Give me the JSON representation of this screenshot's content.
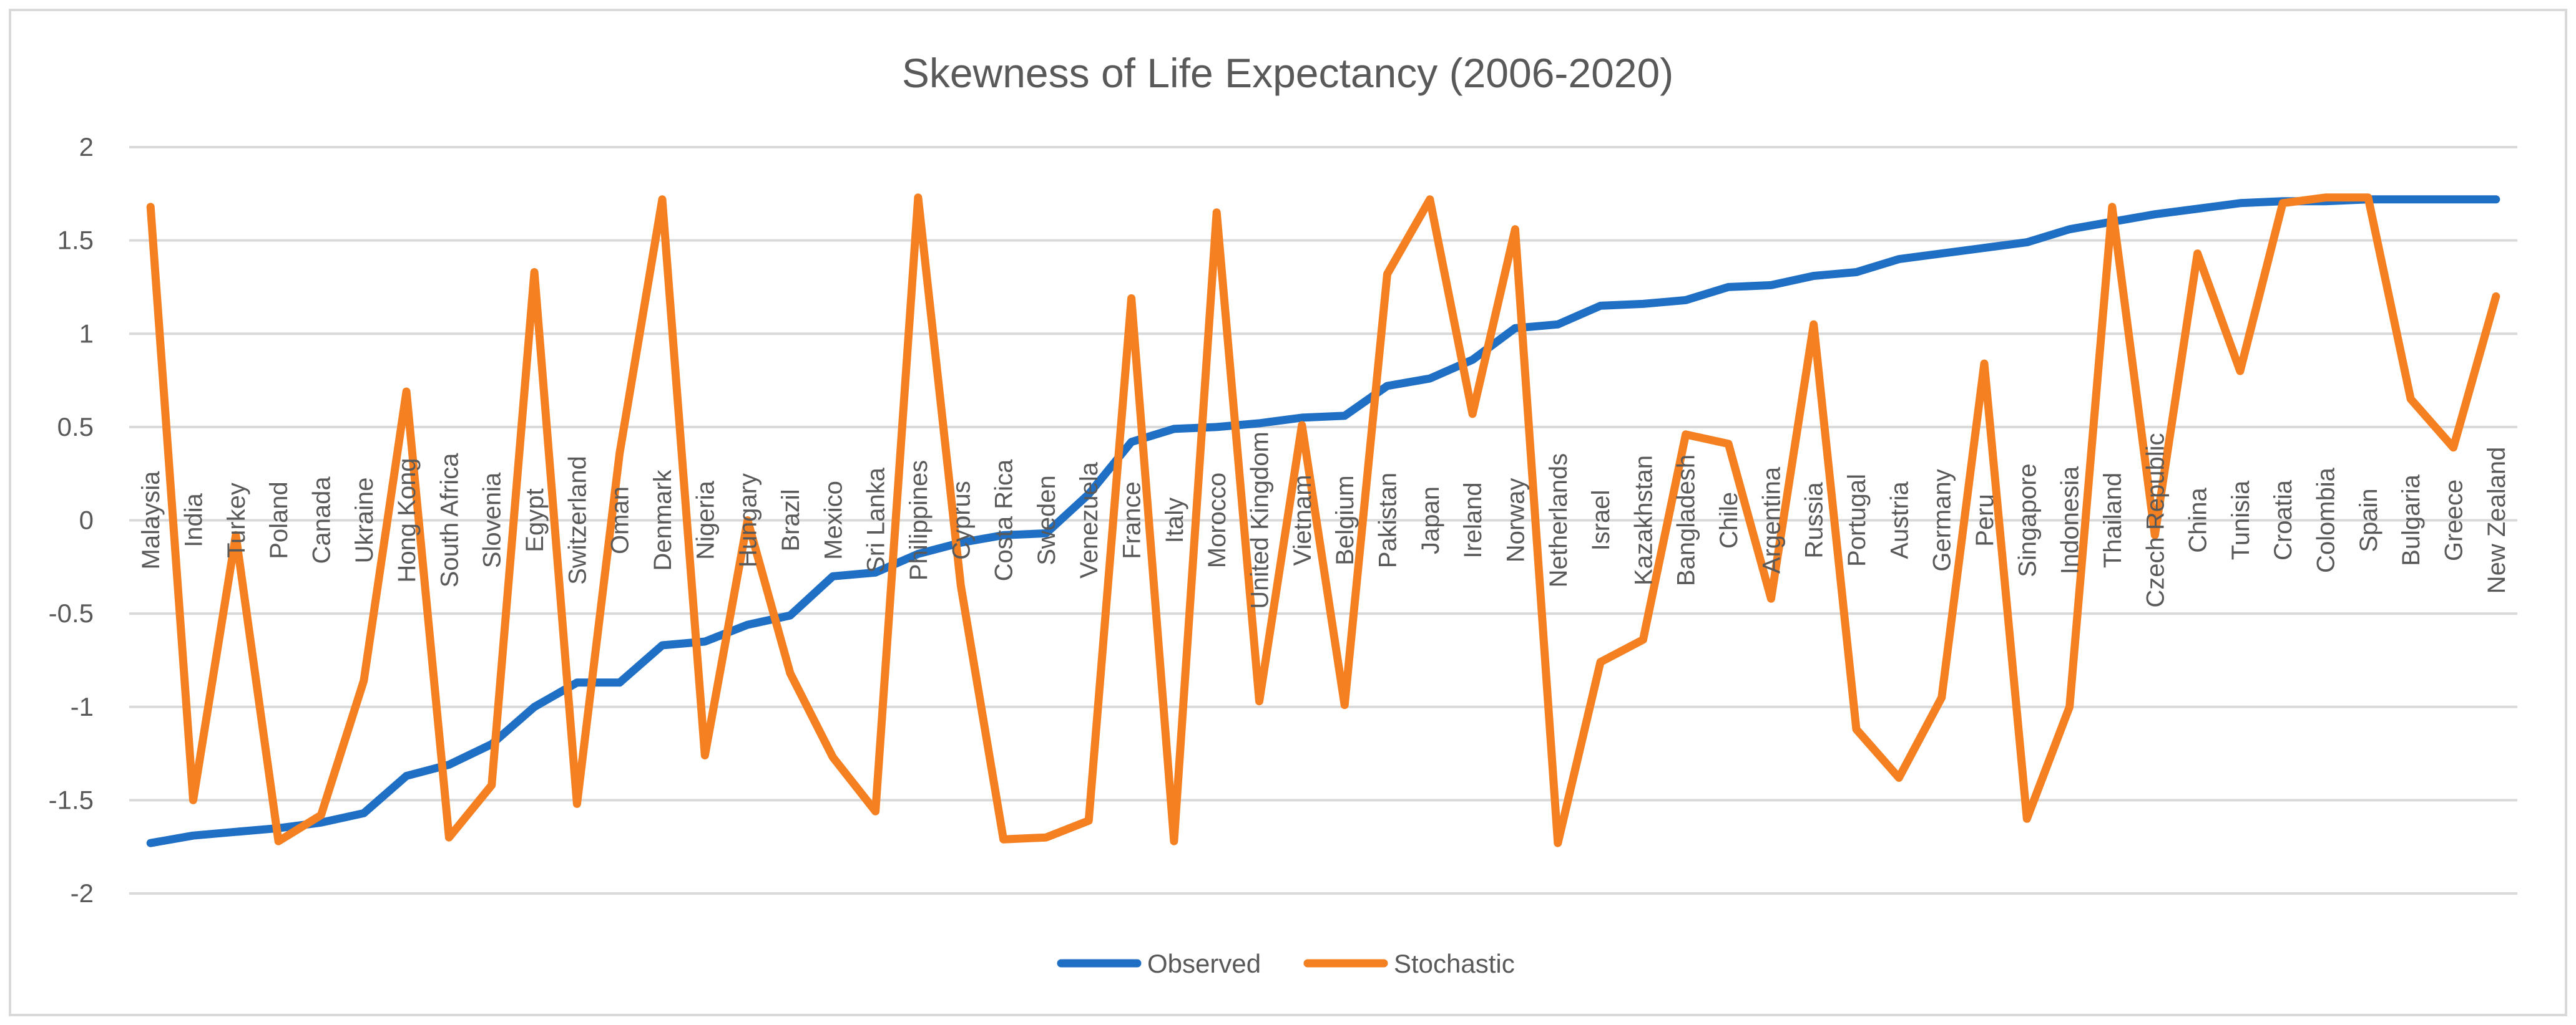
{
  "chart_data": {
    "type": "line",
    "title": "Skewness of Life Expectancy (2006-2020)",
    "xlabel": "",
    "ylabel": "",
    "ylim": [
      -2,
      2
    ],
    "yticks": [
      "2",
      "1.5",
      "1",
      "0.5",
      "0",
      "-0.5",
      "-1",
      "-1.5",
      "-2"
    ],
    "ytick_values": [
      2,
      1.5,
      1,
      0.5,
      0,
      -0.5,
      -1,
      -1.5,
      -2
    ],
    "grid": true,
    "legend_position": "bottom",
    "categories": [
      "Malaysia",
      "India",
      "Turkey",
      "Poland",
      "Canada",
      "Ukraine",
      "Hong Kong",
      "South Africa",
      "Slovenia",
      "Egypt",
      "Switzerland",
      "Oman",
      "Denmark",
      "Nigeria",
      "Hungary",
      "Brazil",
      "Mexico",
      "Sri Lanka",
      "Philippines",
      "Cyprus",
      "Costa Rica",
      "Sweden",
      "Venezuela",
      "France",
      "Italy",
      "Morocco",
      "United Kingdom",
      "Vietnam",
      "Belgium",
      "Pakistan",
      "Japan",
      "Ireland",
      "Norway",
      "Netherlands",
      "Israel",
      "Kazakhstan",
      "Bangladesh",
      "Chile",
      "Argentina",
      "Russia",
      "Portugal",
      "Austria",
      "Germany",
      "Peru",
      "Singapore",
      "Indonesia",
      "Thailand",
      "Czech Republic",
      "China",
      "Tunisia",
      "Croatia",
      "Colombia",
      "Spain",
      "Bulgaria",
      "Greece",
      "New Zealand"
    ],
    "series": [
      {
        "name": "Observed",
        "color": "#1f6fc5",
        "values": [
          -1.73,
          -1.69,
          -1.67,
          -1.65,
          -1.62,
          -1.57,
          -1.37,
          -1.31,
          -1.2,
          -1.0,
          -0.87,
          -0.87,
          -0.67,
          -0.65,
          -0.56,
          -0.51,
          -0.3,
          -0.28,
          -0.18,
          -0.12,
          -0.08,
          -0.07,
          0.14,
          0.42,
          0.49,
          0.5,
          0.52,
          0.55,
          0.56,
          0.72,
          0.76,
          0.86,
          1.03,
          1.05,
          1.15,
          1.16,
          1.18,
          1.25,
          1.26,
          1.31,
          1.33,
          1.4,
          1.43,
          1.46,
          1.49,
          1.56,
          1.6,
          1.64,
          1.67,
          1.7,
          1.71,
          1.71,
          1.72,
          1.72,
          1.72,
          1.72
        ]
      },
      {
        "name": "Stochastic",
        "color": "#f48021",
        "values": [
          1.68,
          -1.5,
          -0.08,
          -1.72,
          -1.58,
          -0.86,
          0.69,
          -1.7,
          -1.42,
          1.33,
          -1.52,
          0.36,
          1.72,
          -1.26,
          0.0,
          -0.82,
          -1.27,
          -1.56,
          1.73,
          -0.35,
          -1.71,
          -1.7,
          -1.61,
          1.19,
          -1.72,
          1.65,
          -0.97,
          0.51,
          -0.99,
          1.32,
          1.72,
          0.57,
          1.56,
          -1.73,
          -0.76,
          -0.64,
          0.46,
          0.41,
          -0.42,
          1.05,
          -1.12,
          -1.38,
          -0.95,
          0.84,
          -1.6,
          -1.0,
          1.68,
          -0.08,
          1.43,
          0.8,
          1.7,
          1.73,
          1.73,
          0.65,
          0.39,
          1.2
        ]
      }
    ]
  }
}
